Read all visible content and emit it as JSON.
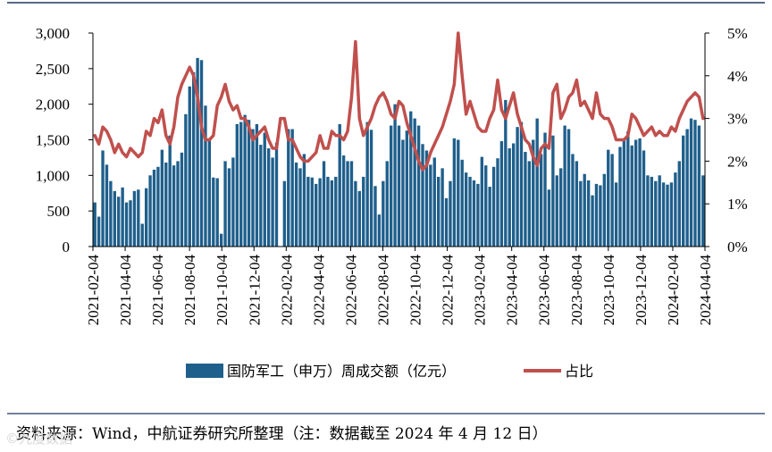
{
  "chart_data": {
    "type": "bar",
    "title": "",
    "xlabel": "",
    "ylabel": "",
    "ylim": [
      0,
      3000
    ],
    "y2lim": [
      0,
      5
    ],
    "yticks": [
      "0",
      "500",
      "1,000",
      "1,500",
      "2,000",
      "2,500",
      "3,000"
    ],
    "y2ticks": [
      "0%",
      "1%",
      "2%",
      "3%",
      "4%",
      "5%"
    ],
    "x_tick_labels": [
      "2021-02-04",
      "2021-04-04",
      "2021-06-04",
      "2021-08-04",
      "2021-10-04",
      "2021-12-04",
      "2022-02-04",
      "2022-04-04",
      "2022-06-04",
      "2022-08-04",
      "2022-10-04",
      "2022-12-04",
      "2023-02-04",
      "2023-04-04",
      "2023-06-04",
      "2023-08-04",
      "2023-10-04",
      "2023-12-04",
      "2024-02-04",
      "2024-04-04"
    ],
    "legend_position": "bottom",
    "grid": false,
    "series": [
      {
        "name": "国防军工（申万）周成交额（亿元）",
        "type": "bar",
        "axis": "left",
        "color": "#1f5f8b",
        "values": [
          620,
          420,
          1350,
          1150,
          920,
          780,
          700,
          830,
          620,
          650,
          780,
          800,
          320,
          820,
          1000,
          1080,
          1120,
          1360,
          1180,
          1560,
          1140,
          1200,
          1320,
          1860,
          2250,
          2450,
          2650,
          2620,
          1980,
          1500,
          970,
          960,
          180,
          1200,
          1100,
          1250,
          1720,
          1750,
          1850,
          1780,
          1650,
          1720,
          1430,
          1600,
          1380,
          1250,
          1460,
          0,
          920,
          1650,
          1650,
          1180,
          1100,
          1300,
          980,
          970,
          880,
          960,
          1200,
          980,
          930,
          980,
          1720,
          1280,
          1200,
          1200,
          920,
          780,
          980,
          1750,
          1640,
          850,
          450,
          920,
          1200,
          1700,
          2000,
          1700,
          1500,
          1630,
          1900,
          1800,
          1700,
          1440,
          1350,
          1150,
          1250,
          980,
          1100,
          680,
          920,
          1520,
          1500,
          1220,
          1040,
          980,
          930,
          880,
          1260,
          1140,
          840,
          1120,
          1240,
          1480,
          2060,
          1380,
          1450,
          1680,
          1750,
          1330,
          1200,
          1500,
          1800,
          1300,
          1600,
          800,
          1560,
          1000,
          1100,
          1700,
          1650,
          1300,
          1200,
          920,
          1020,
          930,
          720,
          880,
          860,
          1020,
          1360,
          1300,
          900,
          1400,
          1500,
          1620,
          1420,
          1500,
          1520,
          1350,
          1000,
          980,
          920,
          1000,
          900,
          870,
          900,
          1040,
          1200,
          1560,
          1650,
          1800,
          1780,
          1700,
          1000
        ]
      },
      {
        "name": "占比",
        "type": "line",
        "axis": "right",
        "color": "#c0504d",
        "values": [
          2.6,
          2.4,
          2.8,
          2.7,
          2.5,
          2.2,
          2.4,
          2.2,
          2.1,
          2.3,
          2.2,
          2.1,
          2.2,
          2.7,
          2.6,
          3.0,
          2.9,
          3.2,
          2.6,
          2.4,
          2.8,
          3.5,
          3.8,
          4.0,
          4.2,
          4.0,
          3.5,
          2.8,
          2.5,
          2.5,
          2.6,
          3.3,
          3.5,
          3.8,
          3.4,
          3.2,
          3.3,
          3.0,
          3.0,
          2.8,
          2.5,
          2.6,
          2.7,
          2.8,
          2.5,
          2.3,
          2.3,
          3.0,
          3.0,
          2.5,
          2.5,
          2.3,
          2.1,
          2.0,
          2.0,
          2.1,
          2.2,
          2.6,
          2.3,
          2.3,
          2.7,
          2.6,
          2.6,
          2.5,
          2.7,
          3.5,
          4.8,
          3.0,
          2.6,
          2.8,
          3.0,
          3.3,
          3.5,
          3.6,
          3.4,
          3.1,
          3.0,
          3.4,
          3.3,
          2.9,
          2.6,
          2.3,
          2.0,
          1.8,
          1.9,
          2.2,
          2.4,
          2.6,
          2.8,
          3.1,
          3.4,
          3.8,
          5.0,
          4.0,
          3.1,
          3.4,
          3.1,
          2.8,
          2.7,
          2.7,
          3.0,
          3.2,
          3.9,
          3.2,
          3.0,
          3.3,
          3.6,
          3.1,
          2.8,
          2.5,
          2.4,
          2.1,
          1.9,
          2.3,
          2.4,
          2.3,
          3.6,
          3.8,
          3.0,
          3.2,
          3.5,
          3.6,
          3.9,
          3.3,
          3.4,
          3.2,
          3.0,
          3.6,
          3.1,
          3.0,
          3.0,
          2.8,
          2.5,
          2.5,
          2.5,
          2.6,
          3.1,
          3.0,
          2.8,
          2.6,
          2.7,
          2.8,
          2.6,
          2.7,
          2.6,
          2.6,
          2.8,
          2.7,
          3.0,
          3.2,
          3.4,
          3.5,
          3.6,
          3.5,
          3.0
        ]
      }
    ]
  },
  "source_note": "资料来源：Wind，中航证券研究所整理（注：数据截至 2024 年 4 月 12 日）",
  "watermark": "©九度数据"
}
